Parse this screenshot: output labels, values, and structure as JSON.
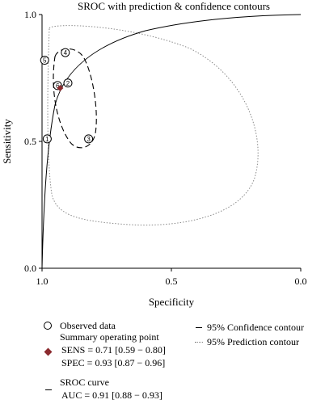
{
  "chart_data": {
    "type": "scatter",
    "title": "SROC with prediction & confidence contours",
    "xlabel": "Specificity",
    "ylabel": "Sensitivity",
    "x_reversed": true,
    "xlim": [
      1.0,
      0.0
    ],
    "ylim": [
      0.0,
      1.0
    ],
    "x_ticks": [
      "1.0",
      "0.5",
      "0.0"
    ],
    "y_ticks": [
      "0.0",
      "0.5",
      "1.0"
    ],
    "grid": false,
    "observed_points": [
      {
        "label": "1",
        "specificity": 0.98,
        "sensitivity": 0.51
      },
      {
        "label": "2",
        "specificity": 0.9,
        "sensitivity": 0.73
      },
      {
        "label": "3",
        "specificity": 0.82,
        "sensitivity": 0.51
      },
      {
        "label": "4",
        "specificity": 0.91,
        "sensitivity": 0.85
      },
      {
        "label": "5",
        "specificity": 0.99,
        "sensitivity": 0.82
      },
      {
        "label": "6",
        "specificity": 0.94,
        "sensitivity": 0.72
      }
    ],
    "summary_point": {
      "specificity": 0.93,
      "sensitivity": 0.71
    },
    "sroc_auc": 0.91,
    "confidence_contour_center": {
      "specificity": 0.93,
      "sensitivity": 0.71
    },
    "prediction_contour_center": {
      "specificity": 0.93,
      "sensitivity": 0.71
    }
  },
  "legend": {
    "observed": "Observed data",
    "summary_title": "Summary operating point",
    "sens": "SENS = 0.71 [0.59 − 0.80]",
    "spec": "SPEC = 0.93 [0.87 − 0.96]",
    "sroc_title": "SROC curve",
    "auc": "AUC = 0.91 [0.88 − 0.93]",
    "confidence": "95% Confidence contour",
    "prediction": "95% Prediction contour"
  },
  "colors": {
    "summary_point": "#8b2a2e",
    "prediction_contour": "#8a8a8a",
    "axes": "#000000"
  }
}
